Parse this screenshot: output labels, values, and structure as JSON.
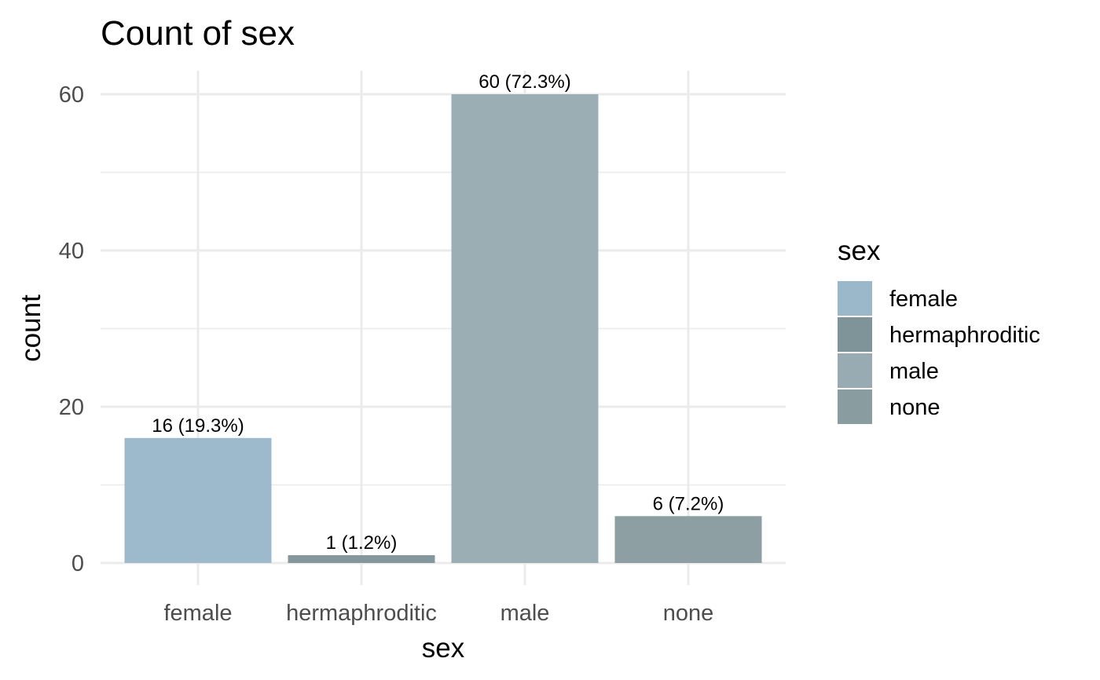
{
  "chart_data": {
    "type": "bar",
    "title": "Count of sex",
    "xlabel": "sex",
    "ylabel": "count",
    "categories": [
      "female",
      "hermaphroditic",
      "male",
      "none"
    ],
    "values": [
      16,
      1,
      60,
      6
    ],
    "labels": [
      "16 (19.3%)",
      "1 (1.2%)",
      "60 (72.3%)",
      "6 (7.2%)"
    ],
    "colors": [
      "#9ab8ca",
      "#7f9499",
      "#98abb2",
      "#899c9f"
    ],
    "ylim": [
      0,
      63
    ],
    "yticks": [
      0,
      20,
      40,
      60
    ],
    "yticks_minor": [
      10,
      30,
      50
    ],
    "grid": true,
    "legend": {
      "title": "sex",
      "position": "right",
      "items": [
        "female",
        "hermaphroditic",
        "male",
        "none"
      ]
    }
  }
}
